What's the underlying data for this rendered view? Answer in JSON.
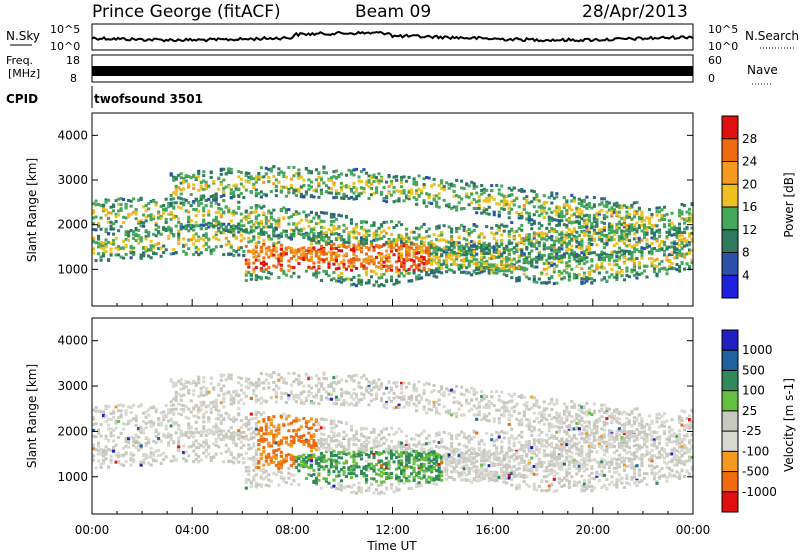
{
  "header": {
    "station": "Prince George (fitACF)",
    "beam": "Beam 09",
    "date": "28/Apr/2013"
  },
  "strips": {
    "nsky": {
      "label": "N.Sky",
      "right_label": "N.Search",
      "ticks": [
        "10^5",
        "10^0"
      ],
      "right_ticks": [
        "10^5",
        "10^0"
      ]
    },
    "freq": {
      "label_top": "Freq.",
      "label_bottom": "[MHz]",
      "ticks": [
        "18",
        "8"
      ],
      "right_ticks": [
        "60",
        "0"
      ],
      "right_label": "Nave"
    },
    "cpid": {
      "label": "CPID",
      "value": "twofsound 3501"
    }
  },
  "colors": {
    "power": [
      "#1f1fdf",
      "#2a52a8",
      "#2f7a5e",
      "#44a85a",
      "#f0c020",
      "#f59a20",
      "#f06a10",
      "#e01010"
    ],
    "velocity": [
      "#e01010",
      "#f06a10",
      "#f59a20",
      "#d8d8d0",
      "#c8c8c0",
      "#66c040",
      "#2f8a5a",
      "#2060a0",
      "#2020c0"
    ]
  },
  "chart_data": [
    {
      "type": "heatmap",
      "ylabel": "Slant Range [km]",
      "y_ticks": [
        "4000",
        "3000",
        "2000",
        "1000"
      ],
      "ylim": [
        180,
        4500
      ],
      "xlim": [
        "00:00",
        "24:00"
      ],
      "colorbar": {
        "label": "Power [dB]",
        "ticks": [
          "28",
          "24",
          "20",
          "16",
          "12",
          "8",
          "4"
        ],
        "range": [
          0,
          32
        ]
      }
    },
    {
      "type": "heatmap",
      "ylabel": "Slant Range [km]",
      "y_ticks": [
        "4000",
        "3000",
        "2000",
        "1000"
      ],
      "ylim": [
        180,
        4500
      ],
      "xlim": [
        "00:00",
        "24:00"
      ],
      "xlabel": "Time UT",
      "x_ticks": [
        "00:00",
        "04:00",
        "08:00",
        "12:00",
        "16:00",
        "20:00",
        "00:00"
      ],
      "colorbar": {
        "label": "Velocity [m s-1]",
        "ticks": [
          "1000",
          "500",
          "100",
          "25",
          "-25",
          "-100",
          "-500",
          "-1000"
        ]
      }
    }
  ]
}
